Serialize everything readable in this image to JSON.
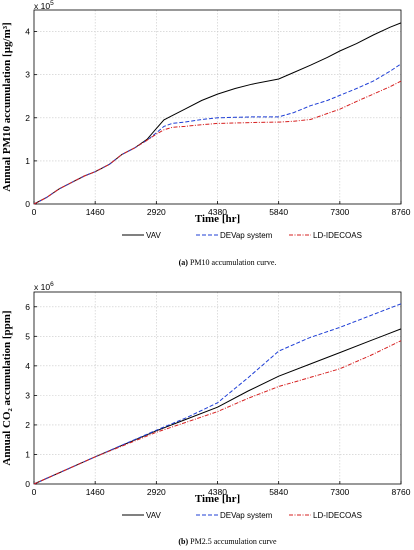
{
  "chart_data": [
    {
      "type": "line",
      "panel": "a",
      "caption_label": "(a)",
      "caption_text": "PM10 accumulation curve.",
      "ylabel": "Annual PM10 accumulation [µg/m³]",
      "xlabel": "Time [hr]",
      "multiplier": "x 10",
      "multiplier_exp": "5",
      "xlim": [
        0,
        8760
      ],
      "ylim": [
        0,
        450000
      ],
      "xticks": [
        0,
        1460,
        2920,
        4380,
        5840,
        7300,
        8760
      ],
      "xtick_labels": [
        "0",
        "1460",
        "2920",
        "4380",
        "5840",
        "7300",
        "8760"
      ],
      "yticks": [
        0,
        100000,
        200000,
        300000,
        400000
      ],
      "ytick_labels": [
        "0",
        "1",
        "2",
        "3",
        "4"
      ],
      "grid": true,
      "legend_position": "bottom",
      "series": [
        {
          "name": "VAV",
          "color": "#000000",
          "dash": "solid",
          "x": [
            0,
            300,
            600,
            900,
            1200,
            1460,
            1800,
            2100,
            2400,
            2700,
            2920,
            3100,
            3300,
            3600,
            4000,
            4380,
            4800,
            5200,
            5840,
            6200,
            6600,
            7000,
            7300,
            7700,
            8100,
            8500,
            8760
          ],
          "y": [
            0,
            15000,
            35000,
            50000,
            65000,
            75000,
            92000,
            115000,
            130000,
            150000,
            175000,
            195000,
            205000,
            220000,
            240000,
            255000,
            268000,
            278000,
            290000,
            305000,
            322000,
            340000,
            355000,
            372000,
            392000,
            410000,
            420000
          ]
        },
        {
          "name": "DEVap system",
          "color": "#1f3fd6",
          "dash": "dashed",
          "x": [
            0,
            300,
            600,
            900,
            1200,
            1460,
            1800,
            2100,
            2400,
            2700,
            2920,
            3100,
            3300,
            3600,
            4000,
            4380,
            4800,
            5200,
            5840,
            6200,
            6600,
            7000,
            7300,
            7700,
            8100,
            8500,
            8760
          ],
          "y": [
            0,
            15000,
            35000,
            50000,
            65000,
            75000,
            92000,
            115000,
            130000,
            148000,
            165000,
            180000,
            187000,
            190000,
            196000,
            200000,
            201000,
            202000,
            202000,
            212000,
            228000,
            240000,
            252000,
            268000,
            285000,
            308000,
            325000
          ]
        },
        {
          "name": "LD-IDECOAS",
          "color": "#d62020",
          "dash": "dashdot",
          "x": [
            0,
            300,
            600,
            900,
            1200,
            1460,
            1800,
            2100,
            2400,
            2700,
            2920,
            3100,
            3300,
            3600,
            4000,
            4380,
            4800,
            5200,
            5840,
            6200,
            6600,
            7000,
            7300,
            7700,
            8100,
            8500,
            8760
          ],
          "y": [
            0,
            15000,
            35000,
            50000,
            65000,
            75000,
            92000,
            115000,
            130000,
            148000,
            162000,
            172000,
            178000,
            180000,
            184000,
            187000,
            188000,
            189000,
            190000,
            192000,
            196000,
            210000,
            220000,
            238000,
            255000,
            272000,
            285000
          ]
        }
      ]
    },
    {
      "type": "line",
      "panel": "b",
      "caption_label": "(b)",
      "caption_text": "PM2.5 accumulation curve",
      "ylabel": "Annual CO₂ accumulation [ppm]",
      "xlabel": "Time [hr]",
      "multiplier": "x 10",
      "multiplier_exp": "6",
      "xlim": [
        0,
        8760
      ],
      "ylim": [
        0,
        6500000
      ],
      "xticks": [
        0,
        1460,
        2920,
        4380,
        5840,
        7300,
        8760
      ],
      "xtick_labels": [
        "0",
        "1460",
        "2920",
        "4380",
        "5840",
        "7300",
        "8760"
      ],
      "yticks": [
        0,
        1000000,
        2000000,
        3000000,
        4000000,
        5000000,
        6000000
      ],
      "ytick_labels": [
        "0",
        "1",
        "2",
        "3",
        "4",
        "5",
        "6"
      ],
      "grid": true,
      "legend_position": "bottom",
      "series": [
        {
          "name": "VAV",
          "color": "#000000",
          "dash": "solid",
          "x": [
            0,
            1460,
            2920,
            3650,
            4380,
            5110,
            5840,
            6570,
            7300,
            8030,
            8760
          ],
          "y": [
            0,
            920000,
            1800000,
            2200000,
            2600000,
            3150000,
            3650000,
            4050000,
            4450000,
            4850000,
            5250000
          ]
        },
        {
          "name": "DEVap system",
          "color": "#1f3fd6",
          "dash": "dashed",
          "x": [
            0,
            1460,
            2920,
            3650,
            4380,
            5110,
            5840,
            6570,
            7300,
            8030,
            8760
          ],
          "y": [
            0,
            920000,
            1820000,
            2250000,
            2750000,
            3600000,
            4500000,
            4950000,
            5300000,
            5700000,
            6100000
          ]
        },
        {
          "name": "LD-IDECOAS",
          "color": "#d62020",
          "dash": "dashdot",
          "x": [
            0,
            1460,
            2920,
            3650,
            4380,
            5110,
            5840,
            6570,
            7300,
            8030,
            8760
          ],
          "y": [
            0,
            920000,
            1750000,
            2100000,
            2450000,
            2900000,
            3300000,
            3600000,
            3900000,
            4350000,
            4850000
          ]
        }
      ]
    }
  ]
}
